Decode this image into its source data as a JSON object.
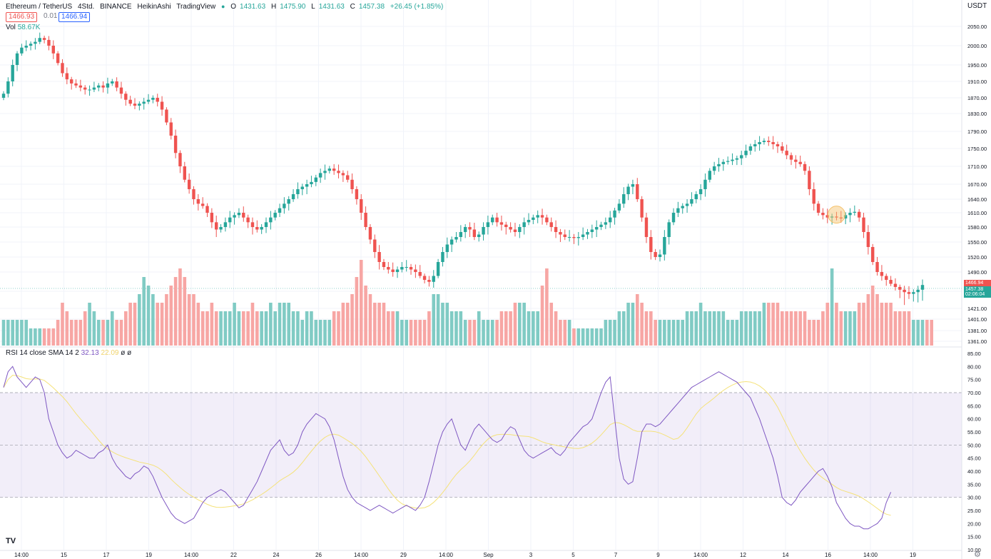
{
  "legend": {
    "symbol": "Ethereum / TetherUS",
    "interval": "4Std.",
    "exchange": "BINANCE",
    "chart_style": "HeikinAshi",
    "source": "TradingView",
    "o_label": "O",
    "o_value": "1431.63",
    "h_label": "H",
    "h_value": "1475.90",
    "l_label": "L",
    "l_value": "1431.63",
    "c_label": "C",
    "c_value": "1457.38",
    "change": "+26.45 (+1.85%)"
  },
  "price_boxes": {
    "sell": "1466.93",
    "spread": "0.01",
    "buy": "1466.94"
  },
  "volume_legend": {
    "label": "Vol",
    "value": "58.67K"
  },
  "rsi_legend": {
    "label": "RSI 14 close SMA 14 2",
    "rsi_value": "32.13",
    "sma_value": "22.09",
    "icons": "ø ø"
  },
  "currency": "USDT",
  "logo": "TV",
  "price_tags": {
    "last_ask": "1466.94",
    "close": "1457.38",
    "countdown": "02:06:04"
  },
  "colors": {
    "up": "#26a69a",
    "down": "#ef5350",
    "vol_up": "#80cbc4",
    "vol_down": "#f7a6a4",
    "rsi": "#7e57c2",
    "sma": "#f5e27a",
    "band": "#7e57c2"
  },
  "chart_data": [
    {
      "type": "candlestick",
      "title": "Ethereum / TetherUS · 4Std. · BINANCE · HeikinAshi",
      "y_axis_ticks": [
        2050,
        2000,
        1950,
        1910,
        1870,
        1830,
        1790,
        1750,
        1710,
        1670,
        1640,
        1610,
        1580,
        1550,
        1520,
        1490,
        1441,
        1421,
        1401,
        1381,
        1361
      ],
      "y_axis_labels": [
        "2050.00",
        "2000.00",
        "1950.00",
        "1910.00",
        "1870.00",
        "1830.00",
        "1790.00",
        "1750.00",
        "1710.00",
        "1670.00",
        "1640.00",
        "1610.00",
        "1580.00",
        "1550.00",
        "1520.00",
        "1490.00",
        "1441.00",
        "1421.00",
        "1401.00",
        "1381.00",
        "1361.00"
      ],
      "x_labels": [
        "14:00",
        "15",
        "17",
        "19",
        "14:00",
        "22",
        "24",
        "26",
        "14:00",
        "29",
        "14:00",
        "Sep",
        "3",
        "5",
        "7",
        "9",
        "14:00",
        "12",
        "14",
        "16",
        "14:00",
        "19"
      ],
      "close_series": [
        1880,
        1910,
        1950,
        1980,
        1995,
        2000,
        2005,
        2010,
        2020,
        2015,
        2000,
        1980,
        1955,
        1930,
        1915,
        1905,
        1900,
        1895,
        1890,
        1890,
        1895,
        1900,
        1895,
        1905,
        1910,
        1895,
        1880,
        1865,
        1855,
        1850,
        1855,
        1860,
        1865,
        1870,
        1860,
        1840,
        1810,
        1780,
        1740,
        1710,
        1680,
        1660,
        1640,
        1630,
        1625,
        1610,
        1590,
        1575,
        1580,
        1590,
        1600,
        1605,
        1610,
        1600,
        1590,
        1580,
        1575,
        1580,
        1590,
        1600,
        1610,
        1620,
        1630,
        1640,
        1650,
        1660,
        1665,
        1670,
        1675,
        1685,
        1695,
        1700,
        1705,
        1700,
        1695,
        1690,
        1680,
        1660,
        1640,
        1610,
        1580,
        1555,
        1530,
        1510,
        1500,
        1495,
        1490,
        1495,
        1500,
        1500,
        1495,
        1490,
        1480,
        1470,
        1465,
        1480,
        1510,
        1530,
        1545,
        1555,
        1560,
        1570,
        1580,
        1575,
        1560,
        1565,
        1580,
        1590,
        1600,
        1590,
        1585,
        1580,
        1575,
        1570,
        1580,
        1590,
        1595,
        1600,
        1605,
        1600,
        1590,
        1580,
        1570,
        1565,
        1560,
        1560,
        1558,
        1560,
        1565,
        1570,
        1575,
        1580,
        1585,
        1590,
        1600,
        1615,
        1630,
        1650,
        1665,
        1670,
        1640,
        1600,
        1560,
        1530,
        1520,
        1525,
        1560,
        1590,
        1610,
        1620,
        1625,
        1630,
        1640,
        1650,
        1660,
        1680,
        1700,
        1710,
        1715,
        1720,
        1722,
        1725,
        1728,
        1735,
        1745,
        1755,
        1760,
        1765,
        1768,
        1765,
        1760,
        1755,
        1745,
        1735,
        1725,
        1720,
        1715,
        1700,
        1660,
        1630,
        1610,
        1605,
        1600,
        1602,
        1600,
        1598,
        1605,
        1610,
        1612,
        1600,
        1570,
        1540,
        1510,
        1490,
        1480,
        1470,
        1460,
        1452,
        1445,
        1440,
        1438,
        1440,
        1445,
        1457
      ],
      "rsi_series": [
        72,
        78,
        80,
        76,
        74,
        72,
        74,
        76,
        75,
        70,
        60,
        55,
        50,
        47,
        45,
        46,
        48,
        47,
        46,
        45,
        45,
        47,
        48,
        50,
        45,
        42,
        40,
        38,
        37,
        39,
        40,
        42,
        41,
        38,
        34,
        30,
        27,
        24,
        22,
        21,
        20,
        21,
        22,
        25,
        28,
        30,
        31,
        32,
        33,
        32,
        30,
        28,
        26,
        27,
        30,
        33,
        36,
        40,
        44,
        48,
        50,
        52,
        48,
        46,
        47,
        50,
        55,
        58,
        60,
        62,
        61,
        60,
        57,
        52,
        45,
        38,
        33,
        30,
        28,
        27,
        26,
        25,
        26,
        27,
        26,
        25,
        24,
        25,
        26,
        27,
        26,
        25,
        27,
        30,
        36,
        43,
        50,
        55,
        58,
        60,
        55,
        50,
        48,
        52,
        56,
        58,
        56,
        54,
        52,
        51,
        52,
        55,
        57,
        56,
        52,
        48,
        46,
        45,
        46,
        47,
        48,
        49,
        47,
        46,
        48,
        51,
        53,
        55,
        57,
        58,
        60,
        65,
        70,
        74,
        76,
        60,
        45,
        37,
        35,
        36,
        45,
        55,
        58,
        58,
        57,
        58,
        60,
        62,
        64,
        66,
        68,
        70,
        72,
        73,
        74,
        75,
        76,
        77,
        78,
        77,
        76,
        75,
        74,
        72,
        70,
        68,
        64,
        60,
        55,
        50,
        45,
        38,
        30,
        28,
        27,
        29,
        32,
        34,
        36,
        38,
        40,
        41,
        38,
        34,
        28,
        25,
        22,
        20,
        19,
        19,
        18,
        18,
        19,
        20,
        22,
        28,
        32
      ],
      "volume_series": [
        3,
        3,
        3,
        3,
        3,
        3,
        2,
        2,
        2,
        2,
        2,
        2,
        3,
        5,
        4,
        3,
        3,
        3,
        4,
        5,
        4,
        3,
        3,
        3,
        4,
        3,
        3,
        4,
        5,
        5,
        6,
        8,
        7,
        6,
        5,
        5,
        6,
        7,
        8,
        9,
        8,
        6,
        6,
        5,
        4,
        4,
        5,
        4,
        4,
        4,
        4,
        5,
        4,
        4,
        4,
        5,
        4,
        4,
        4,
        5,
        4,
        5,
        5,
        5,
        4,
        4,
        3,
        4,
        4,
        3,
        3,
        3,
        3,
        4,
        4,
        5,
        5,
        6,
        8,
        10,
        7,
        6,
        5,
        5,
        5,
        4,
        4,
        4,
        3,
        3,
        3,
        3,
        3,
        3,
        4,
        6,
        6,
        5,
        5,
        4,
        4,
        4,
        3,
        3,
        3,
        4,
        3,
        3,
        3,
        3,
        4,
        4,
        4,
        5,
        5,
        5,
        4,
        4,
        4,
        7,
        9,
        5,
        4,
        3,
        3,
        3,
        2,
        2,
        2,
        2,
        2,
        2,
        2,
        3,
        3,
        3,
        4,
        4,
        5,
        5,
        6,
        5,
        4,
        4,
        3,
        3,
        3,
        3,
        3,
        3,
        3,
        4,
        4,
        4,
        5,
        4,
        4,
        4,
        4,
        4,
        3,
        3,
        3,
        4,
        4,
        4,
        4,
        4,
        5,
        5,
        5,
        5,
        4,
        4,
        4,
        4,
        4,
        4,
        3,
        3,
        3,
        4,
        5,
        9,
        5,
        4,
        4,
        4,
        4,
        5,
        5,
        6,
        7,
        6,
        5,
        5,
        5,
        4,
        4,
        4,
        4,
        3,
        3,
        3,
        3,
        3
      ],
      "highlight": {
        "index": 184
      }
    }
  ]
}
